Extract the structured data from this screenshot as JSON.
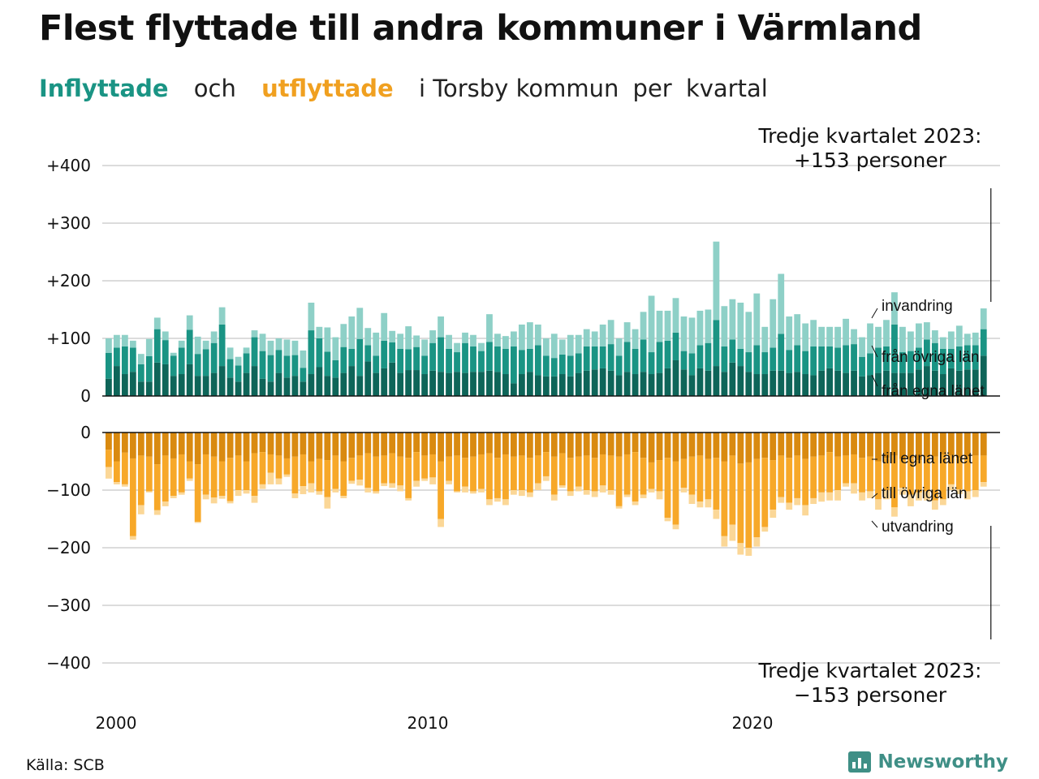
{
  "title": "Flest flyttade till andra kommuner i Värmland",
  "subtitle": {
    "part1": "Inflyttade",
    "part2": "och",
    "part3": "utflyttade",
    "part4": "i Torsby kommun",
    "part5": "per",
    "part6": "kvartal"
  },
  "source": "Källa: SCB",
  "brand": "Newsworthy",
  "colors": {
    "in_own": "#0e6559",
    "in_other": "#1a9484",
    "in_immig": "#8ed0c7",
    "out_own": "#d98a10",
    "out_other": "#f7a829",
    "out_emig": "#fbd797",
    "brand": "#3f8f86"
  },
  "chart_data": {
    "type": "bar",
    "x_start": "2000 Q1",
    "frequency": "quarterly",
    "x_ticks": [
      "2000",
      "2010",
      "2020"
    ],
    "y_ticks_top": [
      "+400",
      "+300",
      "+200",
      "+100",
      "0"
    ],
    "y_ticks_bottom": [
      "0",
      "−100",
      "−200",
      "−300",
      "−400"
    ],
    "ylim_top": [
      0,
      400
    ],
    "ylim_bottom": [
      -400,
      0
    ],
    "grid": true,
    "inflow_series": [
      {
        "name": "från egna länet",
        "values": [
          30,
          52,
          38,
          42,
          25,
          25,
          58,
          55,
          35,
          38,
          55,
          35,
          35,
          40,
          52,
          32,
          25,
          40,
          52,
          30,
          25,
          40,
          32,
          35,
          25,
          38,
          50,
          35,
          32,
          40,
          52,
          35,
          60,
          40,
          48,
          58,
          40,
          45,
          45,
          38,
          44,
          42,
          40,
          42,
          40,
          42,
          42,
          44,
          42,
          38,
          22,
          38,
          42,
          36,
          34,
          34,
          38,
          34,
          40,
          44,
          46,
          48,
          44,
          36,
          42,
          38,
          42,
          38,
          40,
          48,
          62,
          46,
          36,
          48,
          44,
          52,
          42,
          58,
          52,
          42,
          38,
          38,
          44,
          44,
          40,
          42,
          38,
          36,
          44,
          48,
          44,
          40,
          44,
          34,
          36,
          40,
          44,
          40,
          40,
          40,
          46,
          52,
          44,
          38,
          48,
          44,
          46,
          46,
          70
        ]
      },
      {
        "name": "från övriga län",
        "values": [
          45,
          32,
          48,
          42,
          30,
          44,
          58,
          42,
          35,
          46,
          60,
          38,
          46,
          52,
          72,
          32,
          28,
          34,
          50,
          48,
          46,
          40,
          38,
          36,
          24,
          76,
          50,
          42,
          30,
          45,
          30,
          64,
          28,
          30,
          48,
          35,
          42,
          36,
          40,
          32,
          48,
          60,
          42,
          34,
          52,
          44,
          36,
          50,
          44,
          44,
          64,
          42,
          40,
          52,
          36,
          32,
          34,
          36,
          34,
          42,
          40,
          38,
          46,
          34,
          52,
          44,
          56,
          38,
          54,
          48,
          48,
          32,
          38,
          40,
          48,
          80,
          44,
          40,
          30,
          34,
          50,
          38,
          40,
          64,
          40,
          46,
          40,
          50,
          42,
          38,
          40,
          48,
          46,
          34,
          38,
          44,
          42,
          84,
          36,
          38,
          38,
          46,
          48,
          44,
          34,
          42,
          42,
          42,
          46
        ]
      },
      {
        "name": "invandring",
        "values": [
          25,
          22,
          20,
          12,
          18,
          30,
          20,
          15,
          5,
          12,
          25,
          30,
          15,
          20,
          30,
          20,
          15,
          10,
          12,
          30,
          25,
          20,
          28,
          25,
          30,
          48,
          20,
          42,
          40,
          40,
          56,
          54,
          30,
          40,
          48,
          20,
          26,
          40,
          20,
          28,
          22,
          36,
          24,
          16,
          18,
          20,
          14,
          48,
          22,
          22,
          26,
          44,
          46,
          36,
          30,
          42,
          26,
          36,
          32,
          30,
          26,
          38,
          42,
          30,
          34,
          34,
          48,
          98,
          54,
          52,
          60,
          60,
          62,
          60,
          58,
          136,
          70,
          70,
          80,
          70,
          90,
          44,
          84,
          104,
          58,
          54,
          48,
          46,
          34,
          34,
          36,
          46,
          26,
          34,
          52,
          36,
          46,
          56,
          44,
          34,
          42,
          30,
          22,
          20,
          30,
          36,
          20,
          22,
          36
        ]
      }
    ],
    "outflow_series": [
      {
        "name": "till egna länet",
        "values": [
          -30,
          -50,
          -35,
          -45,
          -40,
          -42,
          -55,
          -40,
          -45,
          -38,
          -50,
          -55,
          -38,
          -42,
          -50,
          -44,
          -40,
          -50,
          -36,
          -34,
          -38,
          -40,
          -45,
          -42,
          -38,
          -50,
          -46,
          -48,
          -40,
          -50,
          -44,
          -40,
          -36,
          -42,
          -40,
          -36,
          -42,
          -44,
          -34,
          -40,
          -38,
          -50,
          -42,
          -40,
          -44,
          -42,
          -38,
          -36,
          -44,
          -38,
          -42,
          -40,
          -44,
          -40,
          -34,
          -42,
          -36,
          -44,
          -42,
          -40,
          -44,
          -38,
          -40,
          -42,
          -38,
          -34,
          -44,
          -52,
          -48,
          -44,
          -50,
          -46,
          -42,
          -40,
          -46,
          -44,
          -50,
          -40,
          -54,
          -52,
          -46,
          -44,
          -48,
          -40,
          -44,
          -40,
          -46,
          -42,
          -40,
          -34,
          -42,
          -40,
          -38,
          -44,
          -42,
          -50,
          -44,
          -40,
          -46,
          -44,
          -48,
          -42,
          -42,
          -38,
          -40,
          -44,
          -42,
          -40,
          -40
        ]
      },
      {
        "name": "till övriga län",
        "values": [
          -30,
          -36,
          -55,
          -135,
          -86,
          -60,
          -80,
          -80,
          -65,
          -66,
          -30,
          -100,
          -70,
          -71,
          -60,
          -75,
          -60,
          -50,
          -74,
          -56,
          -32,
          -40,
          -28,
          -64,
          -55,
          -38,
          -56,
          -64,
          -58,
          -60,
          -40,
          -42,
          -60,
          -60,
          -48,
          -52,
          -50,
          -70,
          -50,
          -40,
          -40,
          -100,
          -42,
          -62,
          -50,
          -60,
          -60,
          -80,
          -70,
          -78,
          -58,
          -60,
          -60,
          -48,
          -42,
          -66,
          -56,
          -58,
          -52,
          -60,
          -58,
          -54,
          -60,
          -86,
          -70,
          -86,
          -64,
          -46,
          -54,
          -104,
          -110,
          -50,
          -66,
          -80,
          -70,
          -90,
          -130,
          -120,
          -138,
          -148,
          -136,
          -120,
          -86,
          -72,
          -78,
          -74,
          -80,
          -72,
          -64,
          -70,
          -58,
          -48,
          -50,
          -60,
          -60,
          -66,
          -56,
          -90,
          -50,
          -64,
          -56,
          -60,
          -76,
          -78,
          -50,
          -55,
          -60,
          -60,
          -46
        ]
      },
      {
        "name": "utvandring",
        "values": [
          -20,
          -4,
          -4,
          -6,
          -16,
          -2,
          -8,
          -8,
          -4,
          -4,
          -4,
          -2,
          -8,
          -10,
          -5,
          -4,
          -10,
          -6,
          -12,
          -8,
          -20,
          -10,
          -4,
          -8,
          -14,
          -16,
          -6,
          -20,
          -6,
          -4,
          -5,
          -10,
          -8,
          -4,
          -5,
          -8,
          -10,
          -4,
          -10,
          -4,
          -12,
          -14,
          -6,
          -2,
          -10,
          -4,
          -6,
          -10,
          -6,
          -10,
          -8,
          -10,
          -8,
          -12,
          -8,
          -10,
          -4,
          -8,
          -8,
          -8,
          -10,
          -12,
          -8,
          -4,
          -4,
          -6,
          -6,
          -6,
          -14,
          -6,
          -8,
          -8,
          -16,
          -10,
          -14,
          -16,
          -18,
          -28,
          -20,
          -14,
          -16,
          -8,
          -14,
          -10,
          -12,
          -12,
          -18,
          -10,
          -16,
          -14,
          -18,
          -6,
          -18,
          -14,
          -12,
          -18,
          -16,
          -16,
          -12,
          -20,
          -14,
          -16,
          -16,
          -10,
          -10,
          -8,
          -14,
          -12,
          -8
        ]
      }
    ],
    "inflow_labels": [
      "invandring",
      "från övriga län",
      "från egna länet"
    ],
    "outflow_labels": [
      "till egna länet",
      "till övriga län",
      "utvandring"
    ],
    "annotation_top": [
      "Tredje kvartalet 2023:",
      "+153 personer"
    ],
    "annotation_bottom": [
      "Tredje kvartalet 2023:",
      "−153 personer"
    ]
  }
}
